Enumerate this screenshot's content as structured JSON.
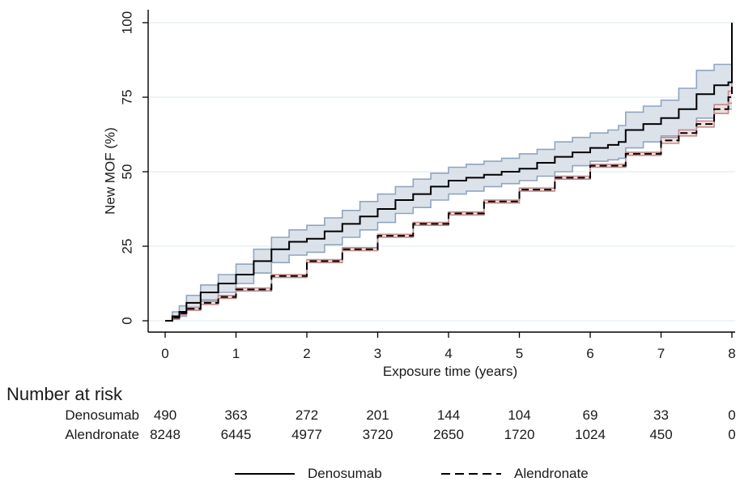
{
  "chart_data": {
    "type": "line",
    "xlabel": "Exposure time (years)",
    "ylabel": "New MOF (%)",
    "xlim": [
      0,
      8
    ],
    "ylim": [
      0,
      100
    ],
    "x_ticks": [
      "0",
      "1",
      "2",
      "3",
      "4",
      "5",
      "6",
      "7",
      "8"
    ],
    "y_ticks": [
      "0",
      "25",
      "50",
      "75",
      "100"
    ],
    "grid": "horizontal",
    "legend_position": "bottom",
    "series": [
      {
        "name": "Denosumab",
        "line_style": "solid",
        "color": "#000000",
        "ci_fill": "#d6dde6",
        "ci_edge": "#8fa5c0",
        "x": [
          0,
          0.1,
          0.2,
          0.3,
          0.5,
          0.75,
          1.0,
          1.25,
          1.5,
          1.75,
          2.0,
          2.25,
          2.5,
          2.75,
          3.0,
          3.25,
          3.5,
          3.75,
          4.0,
          4.25,
          4.5,
          4.75,
          5.0,
          5.25,
          5.5,
          5.75,
          6.0,
          6.25,
          6.4,
          6.5,
          6.75,
          7.0,
          7.25,
          7.5,
          7.75,
          7.95,
          8.0
        ],
        "y": [
          0,
          1.5,
          3,
          6,
          9.5,
          12.5,
          15.5,
          20,
          24,
          26.5,
          27.5,
          30,
          32.5,
          35,
          37.5,
          40.5,
          42.5,
          45,
          47,
          48,
          49,
          50,
          51,
          53,
          55,
          56.5,
          58,
          59,
          60,
          64,
          66,
          68,
          71,
          76,
          79,
          80,
          100
        ],
        "ci_lower": [
          0,
          0.5,
          1.5,
          4,
          7,
          9.5,
          12.5,
          16,
          19.5,
          22,
          23,
          25.5,
          28,
          30.5,
          33,
          36,
          38,
          40.5,
          42.5,
          43.5,
          45,
          46,
          47,
          48.5,
          50,
          52,
          53.5,
          54,
          54.5,
          58,
          60,
          62,
          64,
          68,
          70,
          71,
          71
        ],
        "ci_upper": [
          0,
          3,
          5,
          8.5,
          12,
          15.5,
          19,
          24,
          28,
          30.5,
          32,
          34.5,
          37,
          40,
          42.5,
          45,
          47.5,
          49.5,
          51.5,
          52.5,
          53.5,
          54.5,
          56,
          57.5,
          60,
          61.5,
          63,
          64,
          65.5,
          70,
          72,
          74,
          78,
          84,
          86,
          86,
          100
        ]
      },
      {
        "name": "Alendronate",
        "line_style": "dashed",
        "color": "#000000",
        "ci_fill": "#f5dede",
        "ci_edge": "#c48a8a",
        "x": [
          0,
          0.1,
          0.2,
          0.3,
          0.5,
          0.75,
          1.0,
          1.5,
          2.0,
          2.5,
          3.0,
          3.5,
          4.0,
          4.5,
          5.0,
          5.5,
          6.0,
          6.5,
          7.0,
          7.25,
          7.5,
          7.75,
          7.95,
          8.0
        ],
        "y": [
          0,
          1,
          2.5,
          4,
          6,
          8,
          10.5,
          15,
          20,
          24,
          28.5,
          32.5,
          36,
          40,
          44,
          48,
          52,
          56,
          60.5,
          63,
          66,
          71,
          75,
          100
        ],
        "ci_lower": [
          0,
          0.6,
          2,
          3.5,
          5.5,
          7.5,
          10,
          14.5,
          19.5,
          23.5,
          28,
          32,
          35.5,
          39.5,
          43.5,
          47.5,
          51.5,
          55.5,
          59.5,
          62,
          65,
          69.5,
          73,
          73
        ],
        "ci_upper": [
          0,
          1.4,
          3,
          4.5,
          6.5,
          8.5,
          11,
          15.5,
          20.5,
          24.5,
          29,
          33,
          36.5,
          40.5,
          44.5,
          48.5,
          52.5,
          56.5,
          61.5,
          64,
          67,
          72.5,
          77,
          100
        ]
      }
    ]
  },
  "risk_table": {
    "title": "Number at risk",
    "rows": [
      {
        "label": "Denosumab",
        "values": [
          "490",
          "363",
          "272",
          "201",
          "144",
          "104",
          "69",
          "33",
          "0"
        ]
      },
      {
        "label": "Alendronate",
        "values": [
          "8248",
          "6445",
          "4977",
          "3720",
          "2650",
          "1720",
          "1024",
          "450",
          "0"
        ]
      }
    ]
  },
  "legend": {
    "items": [
      {
        "label": "Denosumab",
        "line_style": "solid"
      },
      {
        "label": "Alendronate",
        "line_style": "dashed"
      }
    ]
  }
}
